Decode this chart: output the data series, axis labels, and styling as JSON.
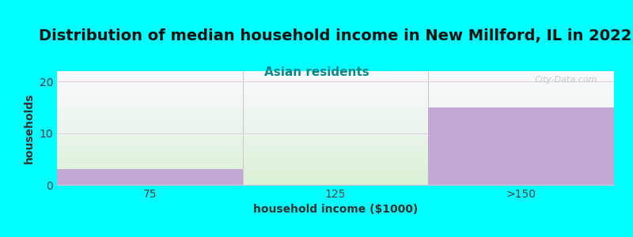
{
  "title": "Distribution of median household income in New Millford, IL in 2022",
  "subtitle": "Asian residents",
  "xlabel": "household income ($1000)",
  "ylabel": "households",
  "categories": [
    "75",
    "125",
    ">150"
  ],
  "values": [
    3,
    0,
    15
  ],
  "bar_color": "#c4a8d4",
  "bar_color_alpha": 1.0,
  "plot_bg_top": "#f8f8ff",
  "plot_bg_bottom": "#e0f5e0",
  "fig_bg_color": "#00ffff",
  "ylim": [
    0,
    22
  ],
  "yticks": [
    0,
    10,
    20
  ],
  "title_fontsize": 14,
  "subtitle_fontsize": 11,
  "subtitle_color": "#008888",
  "axis_label_fontsize": 10,
  "tick_fontsize": 10,
  "watermark": "City-Data.com",
  "watermark_color": "#aaaaaa"
}
